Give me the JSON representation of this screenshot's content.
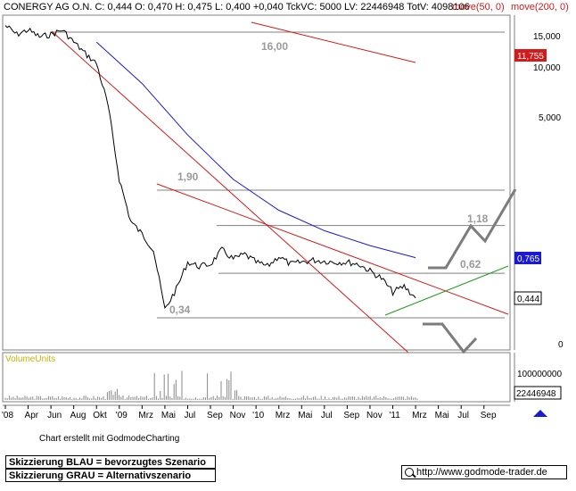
{
  "header": {
    "text": "CONERGY AG O.N. C: 0,444  O: 0,470  H: 0,475  L: 0,400  +0,040  TckVC: 5000  LV: 22446948  TotV: 4098106",
    "ma50": "move(50, 0)",
    "ma200": "move(200, 0)"
  },
  "credit": "Chart erstellt mit GodmodeCharting",
  "legend": {
    "blue": "Skizzierung BLAU = bevorzugtes Szenario",
    "gray": "Skizzierung GRAU = Alternativszenario"
  },
  "url": "http://www.godmode-trader.de",
  "colors": {
    "price": "#000000",
    "ma50": "#d41a1a",
    "ma200": "#1a1ad4",
    "level": "#808080",
    "trend": "#d41a1a",
    "support": "#1d9b1d",
    "scenario": "#7c7c7c",
    "panel_border": "#7f7f7f"
  },
  "chart_data": [
    {
      "type": "line",
      "title": "CONERGY AG O.N.",
      "scale": "log",
      "y_tick_labels": [
        "15,000",
        "10,000",
        "5,000",
        "0"
      ],
      "x_tick_labels": [
        "'08",
        "Apr",
        "Jun",
        "Aug",
        "Okt",
        "'09",
        "Mrz",
        "Mai",
        "Jul",
        "Sep",
        "Nov",
        "'10",
        "Mrz",
        "Mai",
        "Jul",
        "Sep",
        "Nov",
        "'11",
        "Mrz",
        "Mai",
        "Jul",
        "Sep"
      ],
      "last_values": {
        "ma50": "11,755",
        "ma200": "0,765",
        "close": "0,444"
      },
      "levels": [
        {
          "label": "16,00",
          "value": 16.0
        },
        {
          "label": "1,90",
          "value": 1.9
        },
        {
          "label": "1,18",
          "value": 1.18
        },
        {
          "label": "0,62",
          "value": 0.62
        },
        {
          "label": "0,34",
          "value": 0.34
        }
      ],
      "series": [
        {
          "name": "CONERGY AG O.N.",
          "x": [
            "2008-01",
            "2008-02",
            "2008-03",
            "2008-04",
            "2008-05",
            "2008-06",
            "2008-07",
            "2008-08",
            "2008-09",
            "2008-10",
            "2008-11",
            "2008-12",
            "2009-01",
            "2009-02",
            "2009-03",
            "2009-04",
            "2009-05",
            "2009-06",
            "2009-07",
            "2009-08",
            "2009-09",
            "2009-10",
            "2009-11",
            "2009-12",
            "2010-01",
            "2010-02",
            "2010-03",
            "2010-04",
            "2010-05",
            "2010-06",
            "2010-07",
            "2010-08",
            "2010-09",
            "2010-10",
            "2010-11",
            "2010-12",
            "2011-01"
          ],
          "values": [
            17.5,
            15.5,
            16.5,
            15.0,
            15.5,
            16.5,
            14.0,
            12.0,
            10.5,
            6.0,
            2.2,
            1.25,
            1.05,
            0.85,
            0.38,
            0.5,
            0.72,
            0.68,
            0.7,
            0.85,
            0.75,
            0.8,
            0.72,
            0.68,
            0.78,
            0.7,
            0.72,
            0.74,
            0.73,
            0.72,
            0.72,
            0.7,
            0.64,
            0.58,
            0.48,
            0.52,
            0.444
          ]
        },
        {
          "name": "move(200, 0)",
          "x": [
            "2008-09",
            "2009-01",
            "2009-05",
            "2009-09",
            "2010-01",
            "2010-05",
            "2010-09",
            "2011-01"
          ],
          "values": [
            14.0,
            8.0,
            4.0,
            2.2,
            1.45,
            1.1,
            0.9,
            0.765
          ]
        }
      ]
    },
    {
      "type": "bar",
      "title": "VolumeUnits",
      "y_tick_labels": [
        "100000000"
      ],
      "last_value": "22446948"
    }
  ]
}
